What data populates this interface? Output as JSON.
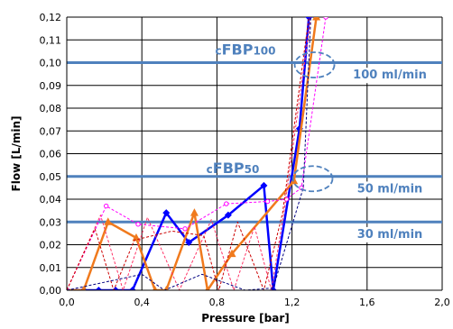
{
  "chart_data": {
    "type": "line",
    "xlabel": "Pressure [bar]",
    "ylabel": "Flow [L/min]",
    "xlim": [
      0,
      2.0
    ],
    "ylim": [
      0,
      0.12
    ],
    "x_ticks": [
      "0,0",
      "0,4",
      "0,8",
      "1,2",
      "1,6",
      "2,0"
    ],
    "y_ticks": [
      "0,00",
      "0,01",
      "0,02",
      "0,03",
      "0,04",
      "0,05",
      "0,06",
      "0,07",
      "0,08",
      "0,09",
      "0,10",
      "0,11",
      "0,12"
    ],
    "x_tick_values": [
      0,
      0.4,
      0.8,
      1.2,
      1.6,
      2.0
    ],
    "y_tick_values": [
      0,
      0.01,
      0.02,
      0.03,
      0.04,
      0.05,
      0.06,
      0.07,
      0.08,
      0.09,
      0.1,
      0.11,
      0.12
    ],
    "grid": "vertical and horizontal",
    "reference_lines": [
      {
        "y": 0.1,
        "label": "100 ml/min"
      },
      {
        "y": 0.05,
        "label": "50 ml/min"
      },
      {
        "y": 0.03,
        "label": "30 ml/min"
      }
    ],
    "annotations": [
      {
        "main": "cFBP",
        "sub": "100"
      },
      {
        "main": "cFBP",
        "sub": "50"
      }
    ],
    "highlight_ellipses": [
      {
        "x": 1.32,
        "y": 0.099
      },
      {
        "x": 1.31,
        "y": 0.049
      }
    ],
    "series": [
      {
        "color": "#0000ff",
        "style": "solid-bold",
        "marker": "diamond",
        "x": [
          0,
          0.09,
          0.17,
          0.26,
          0.35,
          0.53,
          0.65,
          0.86,
          1.05,
          1.1,
          1.24,
          1.29
        ],
        "y": [
          0,
          0,
          0,
          0,
          0,
          0.034,
          0.021,
          0.033,
          0.046,
          0,
          0.071,
          0.12
        ]
      },
      {
        "color": "#f07a1d",
        "style": "solid-bold",
        "marker": "triangle",
        "x": [
          0,
          0.09,
          0.22,
          0.37,
          0.47,
          0.53,
          0.68,
          0.75,
          0.88,
          1.21,
          1.33
        ],
        "y": [
          0,
          0,
          0.03,
          0.023,
          0,
          0,
          0.034,
          0,
          0.016,
          0.048,
          0.12
        ]
      },
      {
        "color": "#ff00ff",
        "style": "dashed",
        "marker": "circle",
        "x": [
          0,
          0.21,
          0.38,
          0.63,
          0.85,
          1.07,
          1.17,
          1.25,
          1.38
        ],
        "y": [
          0,
          0.037,
          0.029,
          0.027,
          0.038,
          0.039,
          0.04,
          0.045,
          0.12
        ]
      },
      {
        "color": "#ff3366",
        "style": "dashed",
        "marker": "none",
        "x": [
          0,
          0.18,
          0.3,
          0.43,
          0.6,
          0.77,
          0.89,
          1.0,
          1.09,
          1.16,
          1.3
        ],
        "y": [
          0,
          0.033,
          0,
          0.032,
          0,
          0.031,
          0,
          0.028,
          0,
          0.036,
          0.12
        ]
      },
      {
        "color": "#cc0000",
        "style": "dashed",
        "marker": "none",
        "x": [
          0,
          0.15,
          0.25,
          0.36,
          0.56,
          0.73,
          0.81,
          0.91,
          1.05,
          1.15,
          1.29
        ],
        "y": [
          0,
          0.027,
          0,
          0.022,
          0.026,
          0.024,
          0,
          0.03,
          0,
          0.034,
          0.12
        ]
      },
      {
        "color": "#000080",
        "style": "dashed",
        "marker": "none",
        "x": [
          0,
          0.4,
          0.52,
          0.72,
          0.95,
          1.1,
          1.26,
          1.3
        ],
        "y": [
          0,
          0.007,
          0,
          0.007,
          0,
          0.001,
          0.045,
          0.12
        ]
      }
    ]
  }
}
